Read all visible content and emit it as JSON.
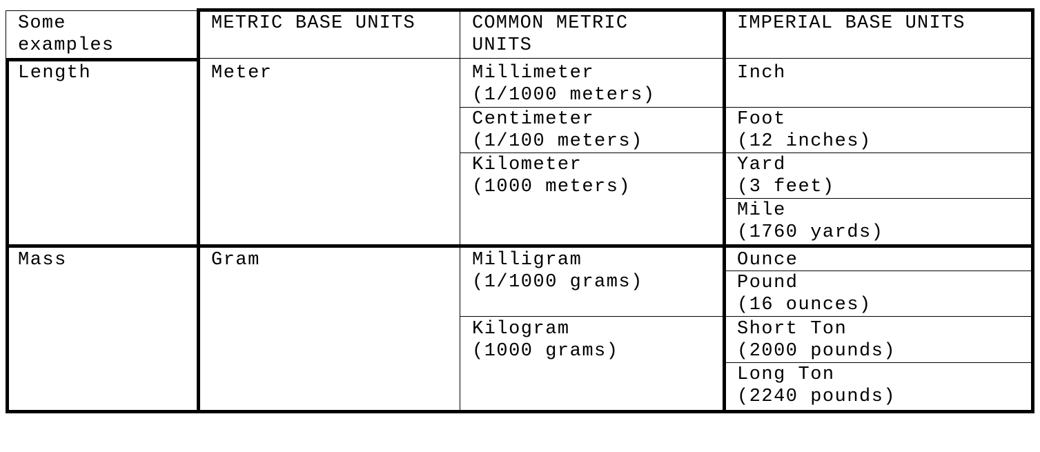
{
  "table": {
    "headers": {
      "examples_line1": "Some",
      "examples_line2": "examples",
      "metric_base": "METRIC BASE UNITS",
      "common_metric_line1": "COMMON METRIC",
      "common_metric_line2": "UNITS",
      "imperial_base": "IMPERIAL BASE UNITS"
    },
    "length": {
      "label": "Length",
      "metric_base": "Meter",
      "common": [
        {
          "name": "Millimeter",
          "note": "(1/1000 meters)"
        },
        {
          "name": "Centimeter",
          "note": "(1/100 meters)"
        },
        {
          "name": "Kilometer",
          "note": "(1000 meters)"
        }
      ],
      "imperial": [
        {
          "name": "Inch",
          "note": ""
        },
        {
          "name": "Foot",
          "note": "(12 inches)"
        },
        {
          "name": "Yard",
          "note": "(3 feet)"
        },
        {
          "name": "Mile",
          "note": "(1760 yards)"
        }
      ]
    },
    "mass": {
      "label": "Mass",
      "metric_base": "Gram",
      "common": [
        {
          "name": "Milligram",
          "note": "(1/1000 grams)"
        },
        {
          "name": "Kilogram",
          "note": "(1000 grams)"
        }
      ],
      "imperial": [
        {
          "name": "Ounce",
          "note": ""
        },
        {
          "name": "Pound",
          "note": "(16 ounces)"
        },
        {
          "name": "Short Ton",
          "note": "(2000 pounds)"
        },
        {
          "name": "Long Ton",
          "note": "(2240 pounds)"
        }
      ]
    }
  }
}
